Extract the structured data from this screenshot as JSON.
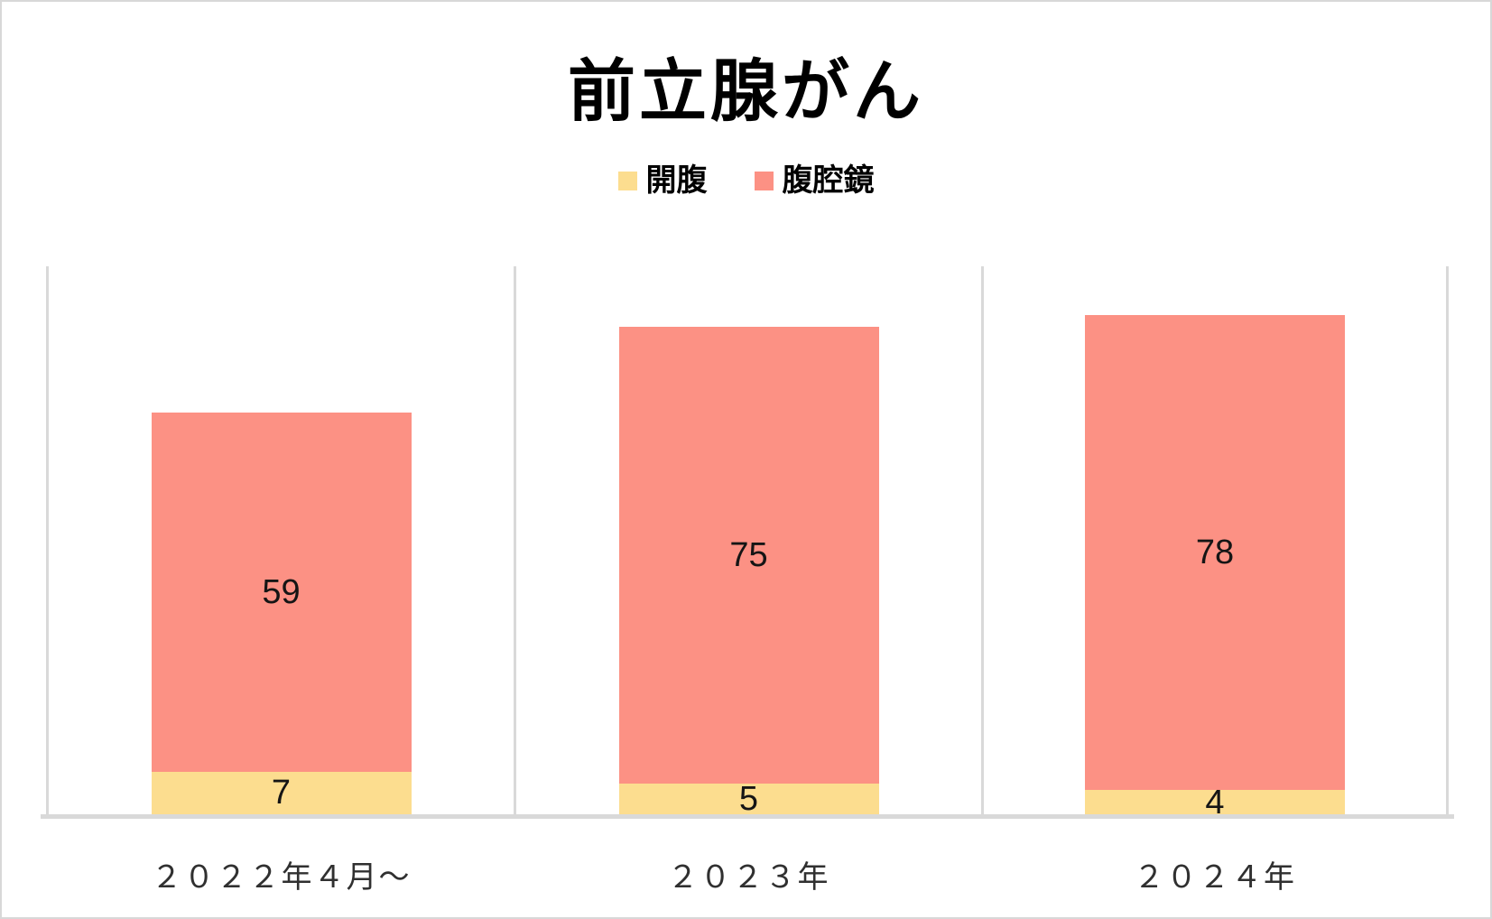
{
  "title": "前立腺がん",
  "legend": {
    "items": [
      {
        "label": "開腹",
        "color": "#FCDD8F"
      },
      {
        "label": "腹腔鏡",
        "color": "#FC9184"
      }
    ]
  },
  "chart_data": {
    "type": "bar",
    "stacked": true,
    "title": "前立腺がん",
    "categories": [
      "２０２２年４月～",
      "２０２３年",
      "２０２４年"
    ],
    "series": [
      {
        "name": "開腹",
        "color": "#FCDD8F",
        "values": [
          7,
          5,
          4
        ]
      },
      {
        "name": "腹腔鏡",
        "color": "#FC9184",
        "values": [
          59,
          75,
          78
        ]
      }
    ],
    "totals": [
      66,
      80,
      82
    ],
    "ylim": [
      0,
      90
    ],
    "xlabel": "",
    "ylabel": "",
    "grid": "vertical-panel-separators",
    "grid_color": "#D9D9D9",
    "legend_position": "top",
    "value_labels": "inside-center"
  }
}
